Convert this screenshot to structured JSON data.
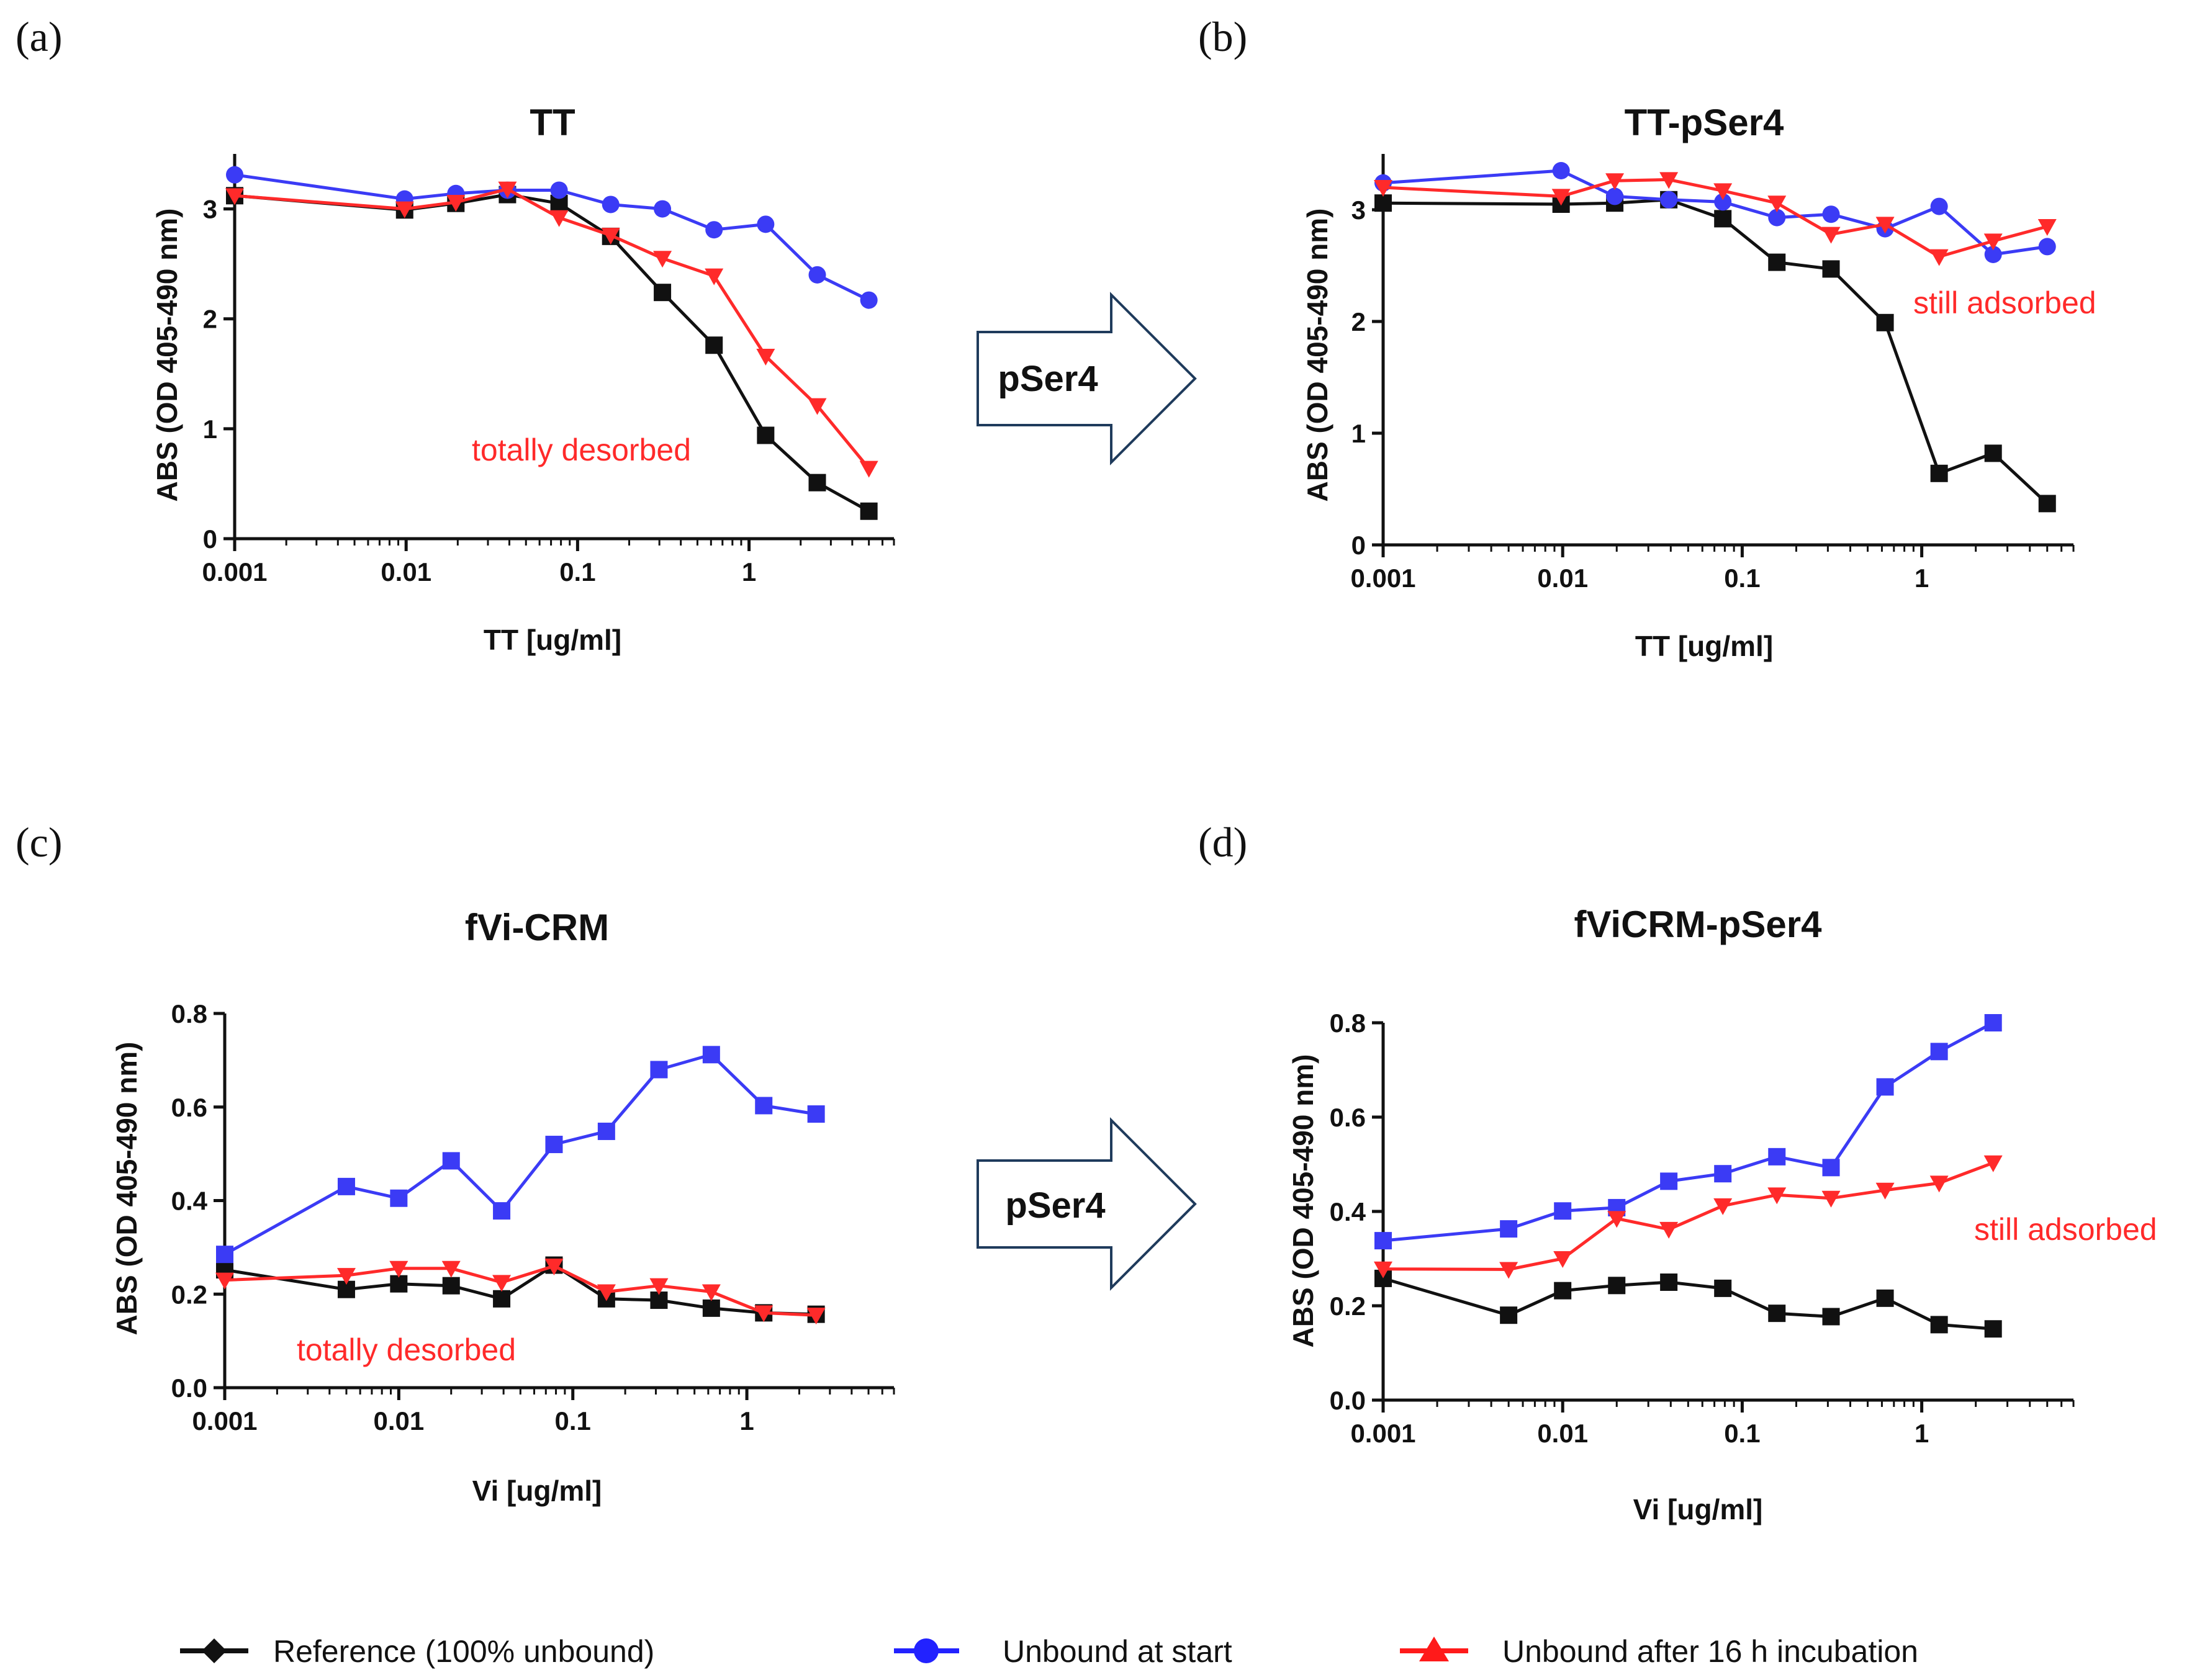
{
  "arrow_label": "pSer4",
  "legend": {
    "items": [
      {
        "label": "Reference (100% unbound)",
        "color": "#111111",
        "marker": "diamond"
      },
      {
        "label": "Unbound at start",
        "color": "#2222ff",
        "marker": "circle"
      },
      {
        "label": "Unbound after 16 h incubation",
        "color": "#ff1a1a",
        "marker": "triangle-up"
      }
    ]
  },
  "chart_data": [
    {
      "panel": "(a)",
      "type": "line",
      "title": "TT",
      "xlabel": "TT [ug/ml]",
      "ylabel": "ABS (OD 405-490 nm)",
      "xscale": "log",
      "xlim": [
        0.001,
        7
      ],
      "ylim": [
        0,
        3.5
      ],
      "yticks": [
        0,
        1,
        2,
        3
      ],
      "xticks": [
        0.001,
        0.01,
        0.1,
        1
      ],
      "xtick_labels": [
        "0.001",
        "0.01",
        "0.1",
        "1"
      ],
      "annotation": "totally desorbed",
      "series": [
        {
          "name": "Reference (100% unbound)",
          "color": "#111111",
          "marker": "square",
          "x": [
            0.001,
            0.0098,
            0.0195,
            0.039,
            0.078,
            0.156,
            0.3125,
            0.625,
            1.25,
            2.5,
            5.0
          ],
          "y": [
            3.12,
            2.99,
            3.05,
            3.13,
            3.05,
            2.75,
            2.24,
            1.76,
            0.94,
            0.51,
            0.25
          ]
        },
        {
          "name": "Unbound at start",
          "color": "#3b3bf5",
          "marker": "circle",
          "x": [
            0.001,
            0.0098,
            0.0195,
            0.039,
            0.078,
            0.156,
            0.3125,
            0.625,
            1.25,
            2.5,
            5.0
          ],
          "y": [
            3.31,
            3.09,
            3.14,
            3.17,
            3.17,
            3.04,
            3.0,
            2.81,
            2.86,
            2.4,
            2.17
          ]
        },
        {
          "name": "Unbound after 16 h incubation",
          "color": "#ff2a2a",
          "marker": "triangle-down",
          "x": [
            0.001,
            0.0098,
            0.0195,
            0.039,
            0.078,
            0.156,
            0.3125,
            0.625,
            1.25,
            2.5,
            5.0
          ],
          "y": [
            3.12,
            3.0,
            3.06,
            3.18,
            2.92,
            2.76,
            2.55,
            2.39,
            1.66,
            1.21,
            0.64
          ]
        }
      ]
    },
    {
      "panel": "(b)",
      "type": "line",
      "title": "TT-pSer4",
      "xlabel": "TT [ug/ml]",
      "ylabel": "ABS (OD 405-490 nm)",
      "xscale": "log",
      "xlim": [
        0.001,
        7
      ],
      "ylim": [
        0,
        3.5
      ],
      "yticks": [
        0,
        1,
        2,
        3
      ],
      "xticks": [
        0.001,
        0.01,
        0.1,
        1
      ],
      "xtick_labels": [
        "0.001",
        "0.01",
        "0.1",
        "1"
      ],
      "annotation": "still adsorbed",
      "series": [
        {
          "name": "Reference (100% unbound)",
          "color": "#111111",
          "marker": "square",
          "x": [
            0.001,
            0.0098,
            0.0195,
            0.039,
            0.078,
            0.156,
            0.3125,
            0.625,
            1.25,
            2.5,
            5.0
          ],
          "y": [
            3.06,
            3.05,
            3.06,
            3.09,
            2.92,
            2.53,
            2.47,
            1.99,
            0.64,
            0.82,
            0.37
          ]
        },
        {
          "name": "Unbound at start",
          "color": "#3b3bf5",
          "marker": "circle",
          "x": [
            0.001,
            0.0098,
            0.0195,
            0.039,
            0.078,
            0.156,
            0.3125,
            0.625,
            1.25,
            2.5,
            5.0
          ],
          "y": [
            3.24,
            3.35,
            3.12,
            3.09,
            3.07,
            2.93,
            2.96,
            2.83,
            3.03,
            2.6,
            2.67
          ]
        },
        {
          "name": "Unbound after 16 h incubation",
          "color": "#ff2a2a",
          "marker": "triangle-down",
          "x": [
            0.001,
            0.0098,
            0.0195,
            0.039,
            0.078,
            0.156,
            0.3125,
            0.625,
            1.25,
            2.5,
            5.0
          ],
          "y": [
            3.2,
            3.12,
            3.26,
            3.27,
            3.17,
            3.06,
            2.78,
            2.87,
            2.58,
            2.72,
            2.85
          ]
        }
      ]
    },
    {
      "panel": "(c)",
      "type": "line",
      "title": "fVi-CRM",
      "xlabel": "Vi [ug/ml]",
      "ylabel": "ABS (OD 405-490 nm)",
      "xscale": "log",
      "xlim": [
        0.001,
        7
      ],
      "ylim": [
        0,
        0.8
      ],
      "yticks": [
        0.0,
        0.2,
        0.4,
        0.6,
        0.8
      ],
      "ytick_labels": [
        "0.0",
        "0.2",
        "0.4",
        "0.6",
        "0.8"
      ],
      "xticks": [
        0.001,
        0.01,
        0.1,
        1
      ],
      "xtick_labels": [
        "0.001",
        "0.01",
        "0.1",
        "1"
      ],
      "annotation": "totally desorbed",
      "series": [
        {
          "name": "Reference (100% unbound)",
          "color": "#111111",
          "marker": "square",
          "x": [
            0.001,
            0.005,
            0.01,
            0.02,
            0.039,
            0.078,
            0.156,
            0.3125,
            0.625,
            1.25,
            2.5
          ],
          "y": [
            0.252,
            0.21,
            0.222,
            0.218,
            0.19,
            0.262,
            0.19,
            0.187,
            0.17,
            0.16,
            0.157
          ]
        },
        {
          "name": "Unbound at start",
          "color": "#3b3bf5",
          "marker": "square",
          "x": [
            0.001,
            0.005,
            0.01,
            0.02,
            0.039,
            0.078,
            0.156,
            0.3125,
            0.625,
            1.25,
            2.5
          ],
          "y": [
            0.285,
            0.43,
            0.405,
            0.485,
            0.378,
            0.52,
            0.548,
            0.68,
            0.712,
            0.603,
            0.585
          ]
        },
        {
          "name": "Unbound after 16 h incubation",
          "color": "#ff2a2a",
          "marker": "triangle-down",
          "x": [
            0.001,
            0.005,
            0.01,
            0.02,
            0.039,
            0.078,
            0.156,
            0.3125,
            0.625,
            1.25,
            2.5
          ],
          "y": [
            0.23,
            0.24,
            0.255,
            0.255,
            0.225,
            0.26,
            0.205,
            0.218,
            0.205,
            0.16,
            0.155
          ]
        }
      ]
    },
    {
      "panel": "(d)",
      "type": "line",
      "title": "fViCRM-pSer4",
      "xlabel": "Vi [ug/ml]",
      "ylabel": "ABS (OD 405-490 nm)",
      "xscale": "log",
      "xlim": [
        0.001,
        7
      ],
      "ylim": [
        0,
        0.8
      ],
      "yticks": [
        0.0,
        0.2,
        0.4,
        0.6,
        0.8
      ],
      "ytick_labels": [
        "0.0",
        "0.2",
        "0.4",
        "0.6",
        "0.8"
      ],
      "xticks": [
        0.001,
        0.01,
        0.1,
        1
      ],
      "xtick_labels": [
        "0.001",
        "0.01",
        "0.1",
        "1"
      ],
      "annotation": "still adsorbed",
      "series": [
        {
          "name": "Reference (100% unbound)",
          "color": "#111111",
          "marker": "square",
          "x": [
            0.001,
            0.005,
            0.01,
            0.02,
            0.039,
            0.078,
            0.156,
            0.3125,
            0.625,
            1.25,
            2.5
          ],
          "y": [
            0.258,
            0.18,
            0.232,
            0.243,
            0.25,
            0.237,
            0.184,
            0.177,
            0.216,
            0.16,
            0.151
          ]
        },
        {
          "name": "Unbound at start",
          "color": "#3b3bf5",
          "marker": "square",
          "x": [
            0.001,
            0.005,
            0.01,
            0.02,
            0.039,
            0.078,
            0.156,
            0.3125,
            0.625,
            1.25,
            2.5
          ],
          "y": [
            0.338,
            0.363,
            0.401,
            0.408,
            0.464,
            0.48,
            0.516,
            0.493,
            0.664,
            0.739,
            0.8
          ]
        },
        {
          "name": "Unbound after 16 h incubation",
          "color": "#ff2a2a",
          "marker": "triangle-down",
          "x": [
            0.001,
            0.005,
            0.01,
            0.02,
            0.039,
            0.078,
            0.156,
            0.3125,
            0.625,
            1.25,
            2.5
          ],
          "y": [
            0.278,
            0.277,
            0.3,
            0.385,
            0.362,
            0.412,
            0.435,
            0.428,
            0.445,
            0.46,
            0.503
          ]
        }
      ]
    }
  ]
}
